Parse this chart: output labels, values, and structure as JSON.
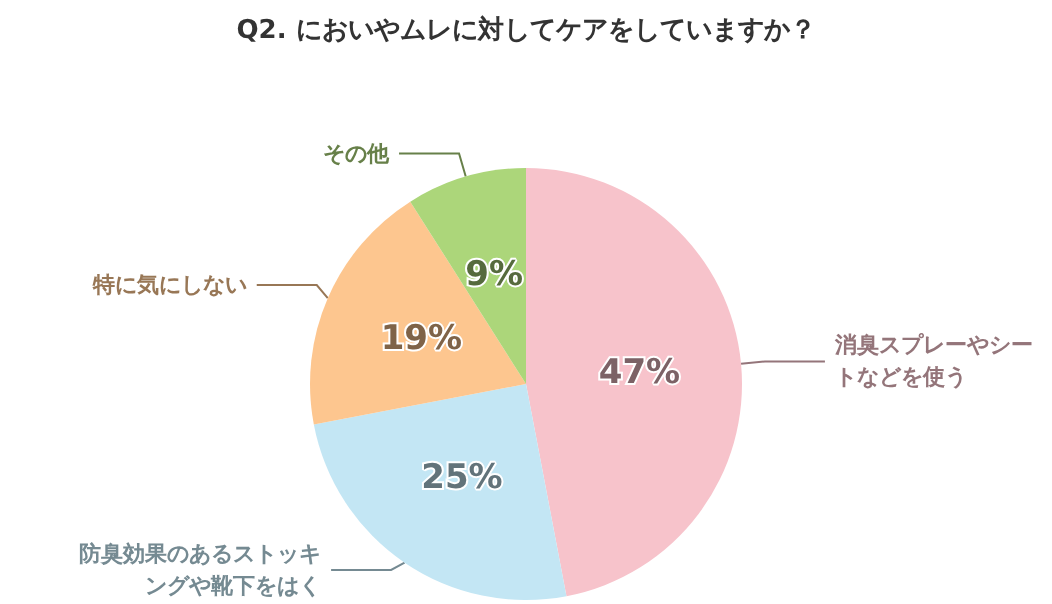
{
  "chart_data": {
    "type": "pie",
    "title": "Q2. においやムレに対してケアをしていますか？",
    "categories": [
      "消臭スプレーやシートなどを使う",
      "防臭効果のあるストッキングや靴下をはく",
      "特に気にしない",
      "その他"
    ],
    "values": [
      47,
      25,
      19,
      9
    ],
    "value_labels": [
      "47%",
      "25%",
      "19%",
      "9%"
    ],
    "colors": [
      "#f7c3cb",
      "#c3e6f4",
      "#fdc68f",
      "#acd67a"
    ],
    "legend": false
  }
}
